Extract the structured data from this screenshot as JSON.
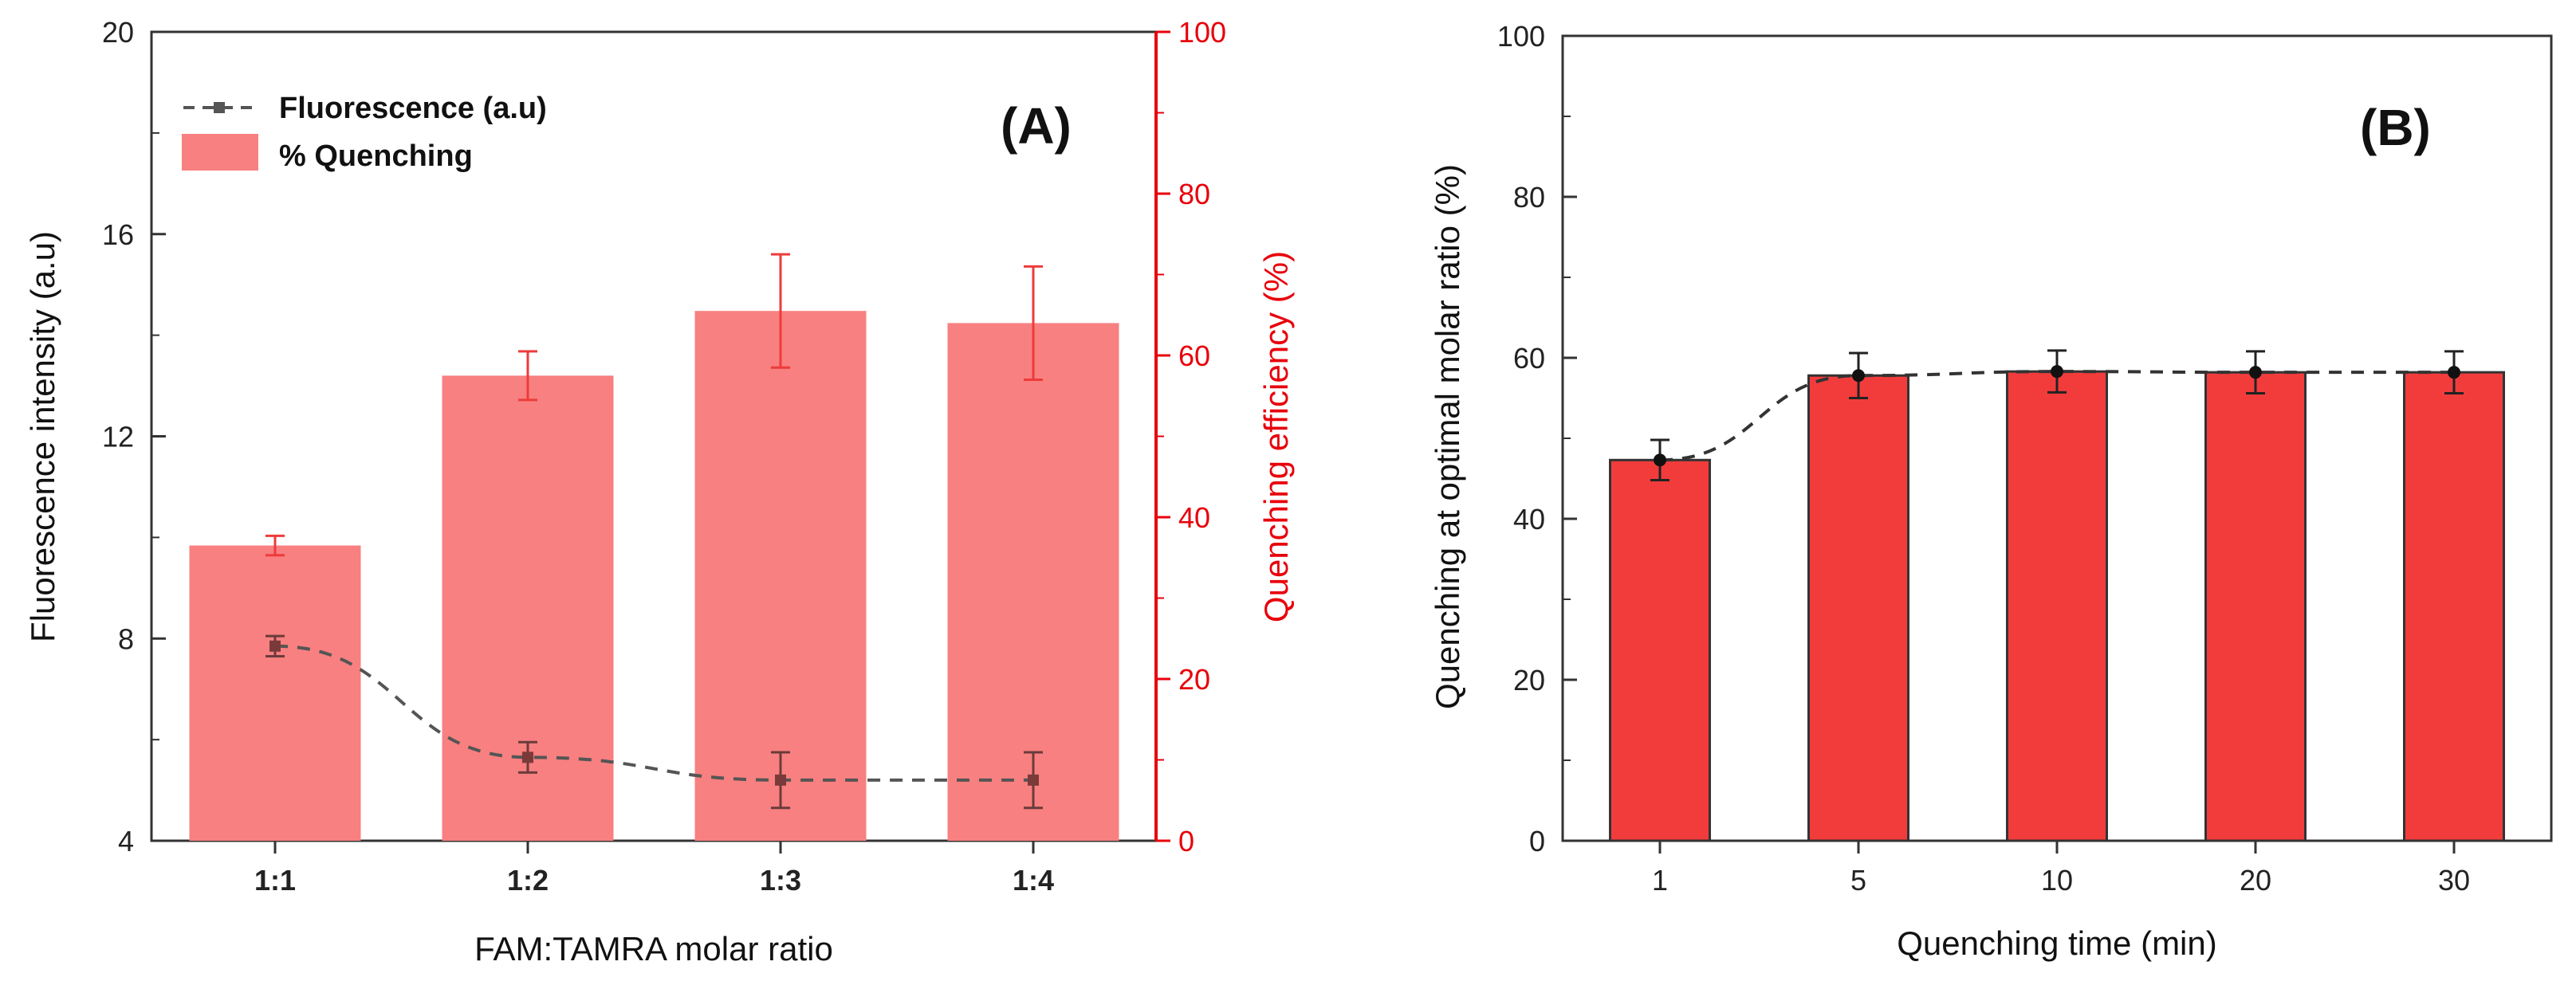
{
  "chart_data": [
    {
      "type": "bar",
      "panel_label": "(A)",
      "categories": [
        "1:1",
        "1:2",
        "1:3",
        "1:4"
      ],
      "xlabel": "FAM:TAMRA molar ratio",
      "ylabel": "Fluorescence intensity (a.u)",
      "ylim": [
        4,
        20
      ],
      "y_ticks": [
        "4",
        "8",
        "12",
        "16",
        "20"
      ],
      "y2label": "Quenching efficiency (%)",
      "y2lim": [
        0,
        100
      ],
      "y2_ticks": [
        "0",
        "20",
        "40",
        "60",
        "80",
        "100"
      ],
      "series": [
        {
          "name": "% Quenching",
          "kind": "bar",
          "axis": "right",
          "values": [
            36.5,
            57.5,
            65.5,
            64
          ],
          "errors": [
            1.2,
            3,
            7,
            7
          ]
        },
        {
          "name": "Fluorescence (a.u)",
          "kind": "line",
          "axis": "left",
          "values": [
            7.85,
            5.65,
            5.2,
            5.2
          ],
          "errors": [
            0.2,
            0.3,
            0.55,
            0.55
          ]
        }
      ],
      "legend": [
        "Fluorescence (a.u)",
        "% Quenching"
      ],
      "legend_position": "top-left",
      "colors": {
        "bar": "#f88080",
        "bar_error": "#ee3b3b",
        "line": "#555555",
        "right_axis": "#e8000b",
        "axis": "#333333"
      }
    },
    {
      "type": "bar",
      "panel_label": "(B)",
      "categories": [
        "1",
        "5",
        "10",
        "20",
        "30"
      ],
      "xlabel": "Quenching time (min)",
      "ylabel": "Quenching at optimal molar ratio (%)",
      "ylim": [
        0,
        100
      ],
      "y_ticks": [
        "0",
        "20",
        "40",
        "60",
        "80",
        "100"
      ],
      "series": [
        {
          "name": "Quenching",
          "kind": "bar+line",
          "values": [
            47.3,
            57.8,
            58.3,
            58.2,
            58.2
          ],
          "errors": [
            2.5,
            2.8,
            2.6,
            2.6,
            2.6
          ]
        }
      ],
      "colors": {
        "bar": "#f23c3c",
        "bar_edge": "#333333",
        "line": "#333333",
        "axis": "#333333"
      }
    }
  ]
}
